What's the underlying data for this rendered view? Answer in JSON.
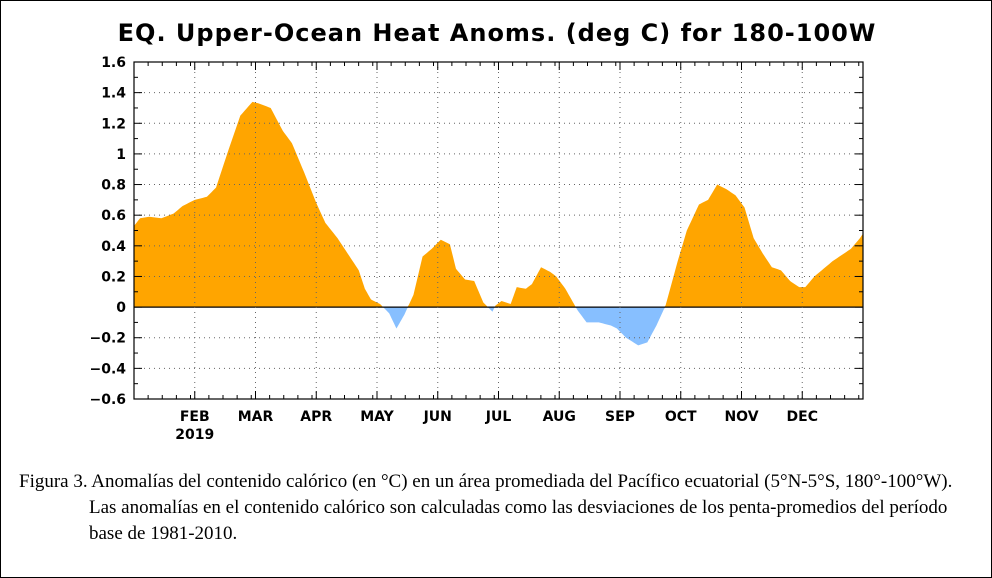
{
  "chart_data": {
    "type": "area",
    "title": "EQ. Upper-Ocean Heat Anoms. (deg C) for 180-100W",
    "ylim": [
      -0.6,
      1.6
    ],
    "yticks": [
      -0.6,
      -0.4,
      -0.2,
      0,
      0.2,
      0.4,
      0.6,
      0.8,
      1,
      1.2,
      1.4,
      1.6
    ],
    "ytick_labels": [
      "−0.6",
      "−0.4",
      "−0.2",
      "0",
      "0.2",
      "0.4",
      "0.6",
      "0.8",
      "1",
      "1.2",
      "1.4",
      "1.6"
    ],
    "xlim": [
      0,
      12
    ],
    "months": [
      {
        "label": "FEB",
        "sub": "2019",
        "x": 1
      },
      {
        "label": "MAR",
        "sub": "",
        "x": 2
      },
      {
        "label": "APR",
        "sub": "",
        "x": 3
      },
      {
        "label": "MAY",
        "sub": "",
        "x": 4
      },
      {
        "label": "JUN",
        "sub": "",
        "x": 5
      },
      {
        "label": "JUL",
        "sub": "",
        "x": 6
      },
      {
        "label": "AUG",
        "sub": "",
        "x": 7
      },
      {
        "label": "SEP",
        "sub": "",
        "x": 8
      },
      {
        "label": "OCT",
        "sub": "",
        "x": 9
      },
      {
        "label": "NOV",
        "sub": "",
        "x": 10
      },
      {
        "label": "DEC",
        "sub": "",
        "x": 11
      }
    ],
    "positive_color": "#ffa500",
    "negative_color": "#87bfff",
    "series": [
      {
        "x": [
          0,
          0.1,
          0.25,
          0.45,
          0.65,
          0.8,
          1.0,
          1.2,
          1.35,
          1.55,
          1.75,
          1.95,
          2.05,
          2.25,
          2.45,
          2.6,
          2.8,
          3.0,
          3.15,
          3.35,
          3.55,
          3.7,
          3.8,
          3.9,
          4.05,
          4.2,
          4.32,
          4.45,
          4.6,
          4.75,
          4.9,
          5.05,
          5.2,
          5.3,
          5.45,
          5.6,
          5.75,
          5.85,
          5.9,
          5.95,
          6.05,
          6.2,
          6.3,
          6.45,
          6.55,
          6.7,
          6.85,
          6.95,
          7.1,
          7.2,
          7.3,
          7.45,
          7.65,
          7.85,
          7.95,
          8.1,
          8.3,
          8.45,
          8.6,
          8.75,
          8.95,
          9.1,
          9.3,
          9.45,
          9.6,
          9.75,
          9.9,
          10.05,
          10.2,
          10.35,
          10.5,
          10.65,
          10.8,
          10.95,
          11.05,
          11.2,
          11.35,
          11.5,
          11.65,
          11.8,
          11.95,
          12.0
        ],
        "y": [
          0.53,
          0.58,
          0.59,
          0.58,
          0.61,
          0.66,
          0.7,
          0.72,
          0.78,
          1.02,
          1.25,
          1.34,
          1.33,
          1.3,
          1.15,
          1.07,
          0.88,
          0.68,
          0.55,
          0.45,
          0.33,
          0.24,
          0.12,
          0.05,
          0.02,
          -0.04,
          -0.14,
          -0.05,
          0.08,
          0.33,
          0.38,
          0.44,
          0.41,
          0.25,
          0.18,
          0.17,
          0.03,
          -0.01,
          -0.03,
          0.01,
          0.04,
          0.02,
          0.13,
          0.12,
          0.15,
          0.26,
          0.23,
          0.2,
          0.12,
          0.05,
          -0.02,
          -0.1,
          -0.1,
          -0.12,
          -0.14,
          -0.2,
          -0.25,
          -0.23,
          -0.12,
          0.01,
          0.3,
          0.5,
          0.67,
          0.7,
          0.8,
          0.77,
          0.73,
          0.65,
          0.45,
          0.35,
          0.26,
          0.24,
          0.17,
          0.13,
          0.13,
          0.2,
          0.25,
          0.3,
          0.34,
          0.38,
          0.45,
          0.48
        ]
      }
    ]
  },
  "caption": {
    "text": "Figura 3. Anomalías del contenido calórico (en °C) en un área promediada del Pacífico ecuatorial (5°N-5°S, 180°-100°W). Las anomalías en el contenido calórico son calculadas como las desviaciones de los penta-promedios del período base de 1981-2010."
  }
}
